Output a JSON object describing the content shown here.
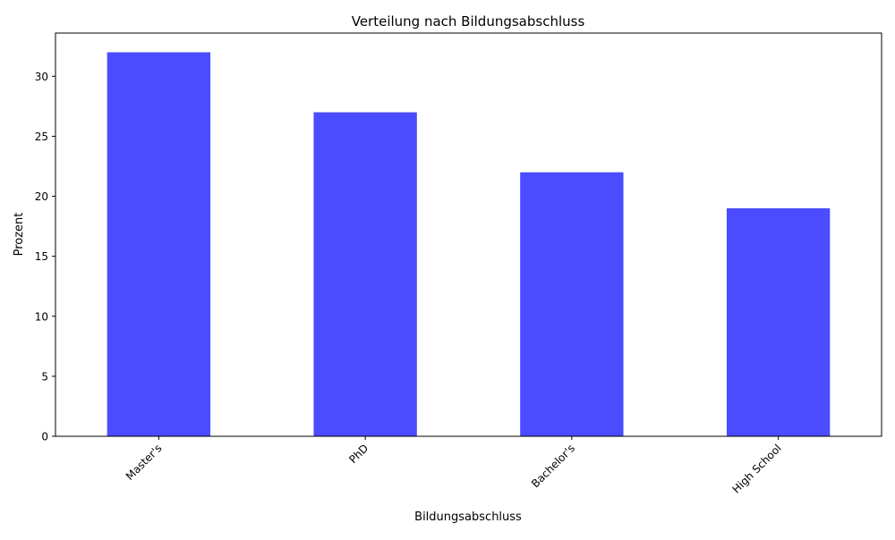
{
  "chart_data": {
    "type": "bar",
    "title": "Verteilung nach Bildungsabschluss",
    "xlabel": "Bildungsabschluss",
    "ylabel": "Prozent",
    "categories": [
      "Master's",
      "PhD",
      "Bachelor's",
      "High School"
    ],
    "values": [
      32,
      27,
      22,
      19
    ],
    "ylim": [
      0,
      33.6
    ],
    "yticks": [
      0,
      5,
      10,
      15,
      20,
      25,
      30
    ],
    "bar_color": "#4b4bff",
    "grid": false,
    "legend": "none"
  }
}
